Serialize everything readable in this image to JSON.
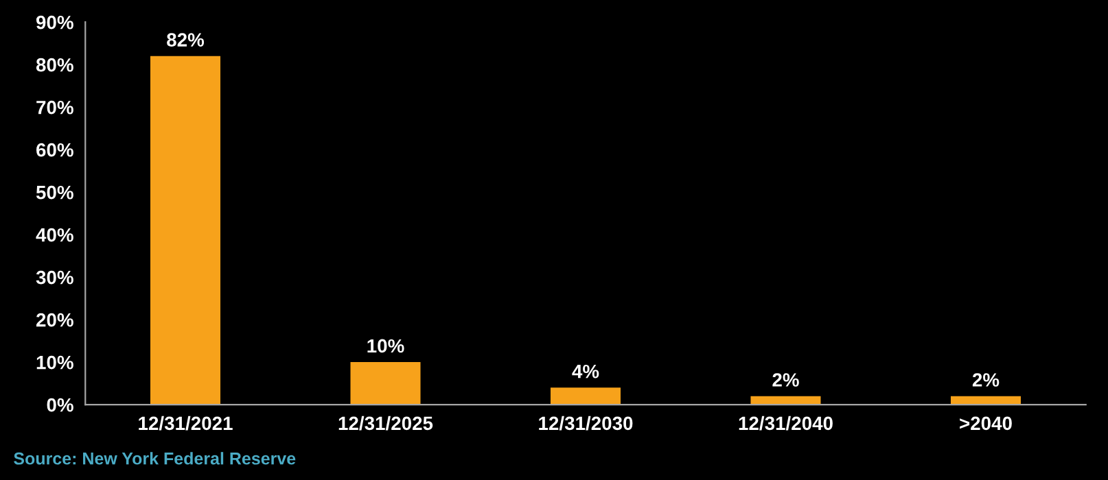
{
  "chart_data": {
    "type": "bar",
    "categories": [
      "12/31/2021",
      "12/31/2025",
      "12/31/2030",
      "12/31/2040",
      ">2040"
    ],
    "values": [
      82,
      10,
      4,
      2,
      2
    ],
    "color": "#f7a21b",
    "value_labels": [
      "82%",
      "10%",
      "4%",
      "2%",
      "2%"
    ],
    "ylim": [
      0,
      90
    ],
    "yticks": [
      {
        "value": 0,
        "label": "0%"
      },
      {
        "value": 10,
        "label": "10%"
      },
      {
        "value": 20,
        "label": "20%"
      },
      {
        "value": 30,
        "label": "30%"
      },
      {
        "value": 40,
        "label": "40%"
      },
      {
        "value": 50,
        "label": "50%"
      },
      {
        "value": 60,
        "label": "60%"
      },
      {
        "value": 70,
        "label": "70%"
      },
      {
        "value": 80,
        "label": "80%"
      },
      {
        "value": 90,
        "label": "90%"
      }
    ],
    "grid": false,
    "legend": false,
    "annotations": [
      "Source: New York Federal Reserve"
    ]
  }
}
